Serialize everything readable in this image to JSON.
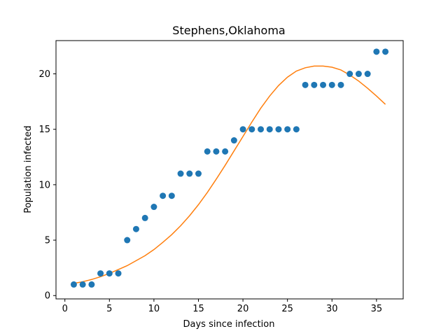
{
  "chart_data": {
    "type": "scatter",
    "title": "Stephens,Oklahoma",
    "xlabel": "Days since infection",
    "ylabel": "Population infected",
    "xlim": [
      -1.0,
      38.0
    ],
    "ylim": [
      -0.3,
      23.0
    ],
    "xticks": [
      0,
      5,
      10,
      15,
      20,
      25,
      30,
      35
    ],
    "yticks": [
      0,
      5,
      10,
      15,
      20
    ],
    "grid": false,
    "legend": "none",
    "series": [
      {
        "kind": "scatter",
        "color": "#1f77b4",
        "x": [
          1,
          2,
          3,
          4,
          5,
          6,
          7,
          8,
          9,
          10,
          11,
          12,
          13,
          14,
          15,
          16,
          17,
          18,
          19,
          20,
          21,
          22,
          23,
          24,
          25,
          26,
          27,
          28,
          29,
          30,
          31,
          32,
          33,
          34,
          35,
          36
        ],
        "y": [
          1,
          1,
          1,
          2,
          2,
          2,
          5,
          6,
          7,
          8,
          9,
          9,
          11,
          11,
          11,
          13,
          13,
          13,
          14,
          15,
          15,
          15,
          15,
          15,
          15,
          15,
          19,
          19,
          19,
          19,
          19,
          20,
          20,
          20,
          22,
          22
        ]
      },
      {
        "kind": "line",
        "color": "#ff7f0e",
        "x": [
          1,
          2,
          3,
          4,
          5,
          6,
          7,
          8,
          9,
          10,
          11,
          12,
          13,
          14,
          15,
          16,
          17,
          18,
          19,
          20,
          21,
          22,
          23,
          24,
          25,
          26,
          27,
          28,
          29,
          30,
          31,
          32,
          33,
          34,
          35,
          36
        ],
        "y": [
          1.1,
          1.25,
          1.45,
          1.7,
          2.0,
          2.35,
          2.7,
          3.15,
          3.6,
          4.15,
          4.8,
          5.5,
          6.3,
          7.2,
          8.2,
          9.3,
          10.5,
          11.75,
          13.05,
          14.35,
          15.65,
          16.9,
          18.0,
          18.95,
          19.7,
          20.25,
          20.55,
          20.7,
          20.7,
          20.6,
          20.35,
          19.9,
          19.35,
          18.7,
          18.0,
          17.25
        ]
      }
    ]
  }
}
